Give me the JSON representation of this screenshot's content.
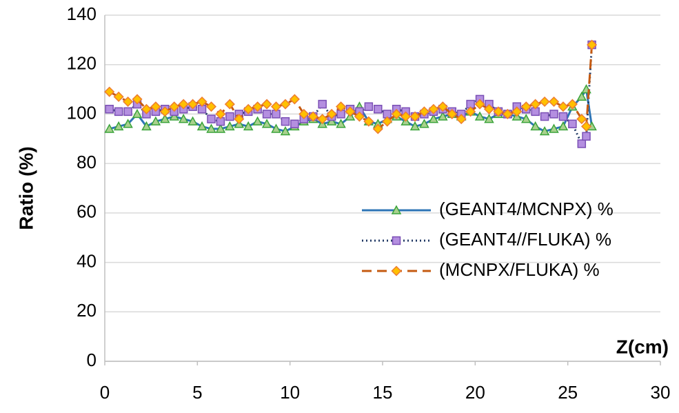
{
  "chart_data": {
    "type": "line",
    "x_label": "Z(cm)",
    "y_label": "Ratio (%)",
    "x": [
      0.25,
      0.75,
      1.25,
      1.75,
      2.25,
      2.75,
      3.25,
      3.75,
      4.25,
      4.75,
      5.25,
      5.75,
      6.25,
      6.75,
      7.25,
      7.75,
      8.25,
      8.75,
      9.25,
      9.75,
      10.25,
      10.75,
      11.25,
      11.75,
      12.25,
      12.75,
      13.25,
      13.75,
      14.25,
      14.75,
      15.25,
      15.75,
      16.25,
      16.75,
      17.25,
      17.75,
      18.25,
      18.75,
      19.25,
      19.75,
      20.25,
      20.75,
      21.25,
      21.75,
      22.25,
      22.75,
      23.25,
      23.75,
      24.25,
      24.75,
      25.25,
      25.75,
      26.0,
      26.3
    ],
    "series": [
      {
        "name": "(GEANT4/MCNPX) %",
        "color": "#2e75b6",
        "marker": "triangle",
        "marker_fill": "#a9d18e",
        "marker_stroke": "#3aa33a",
        "dash": "",
        "values": [
          94,
          95,
          96,
          100,
          95,
          97,
          98,
          99,
          98,
          97,
          95,
          94,
          94,
          95,
          96,
          95,
          97,
          96,
          94,
          93,
          95,
          97,
          98,
          96,
          97,
          96,
          99,
          103,
          97,
          96,
          98,
          99,
          97,
          95,
          96,
          98,
          99,
          100,
          99,
          101,
          99,
          98,
          100,
          100,
          99,
          98,
          95,
          93,
          94,
          95,
          103,
          107,
          110,
          95
        ]
      },
      {
        "name": "(GEANT4//FLUKA) %",
        "color": "#1f3864",
        "marker": "square",
        "marker_fill": "#b48fe0",
        "marker_stroke": "#7a4fb5",
        "dash": "2 4",
        "values": [
          102,
          101,
          101,
          104,
          100,
          101,
          102,
          101,
          102,
          103,
          102,
          98,
          97,
          99,
          100,
          101,
          102,
          100,
          100,
          97,
          96,
          98,
          99,
          104,
          99,
          100,
          102,
          101,
          103,
          102,
          100,
          102,
          101,
          99,
          100,
          101,
          102,
          101,
          100,
          104,
          106,
          104,
          101,
          100,
          103,
          102,
          101,
          99,
          100,
          99,
          96,
          88,
          91,
          128
        ]
      },
      {
        "name": "(MCNPX/FLUKA) %",
        "color": "#c55a11",
        "marker": "diamond",
        "marker_fill": "#ffc000",
        "marker_stroke": "#ed7d31",
        "dash": "14 8",
        "values": [
          109,
          107,
          105,
          106,
          102,
          103,
          101,
          103,
          104,
          104,
          105,
          103,
          100,
          104,
          98,
          102,
          103,
          104,
          103,
          104,
          106,
          100,
          99,
          98,
          100,
          103,
          101,
          99,
          97,
          94,
          97,
          100,
          99,
          99,
          101,
          102,
          103,
          100,
          98,
          101,
          104,
          102,
          101,
          100,
          101,
          103,
          104,
          105,
          105,
          103,
          104,
          98,
          95,
          128
        ]
      }
    ],
    "xlim": [
      0,
      30
    ],
    "xticks": [
      0,
      5,
      10,
      15,
      20,
      25,
      30
    ],
    "ylim": [
      0,
      140
    ],
    "yticks": [
      0,
      20,
      40,
      60,
      80,
      100,
      120,
      140
    ],
    "grid": true
  }
}
